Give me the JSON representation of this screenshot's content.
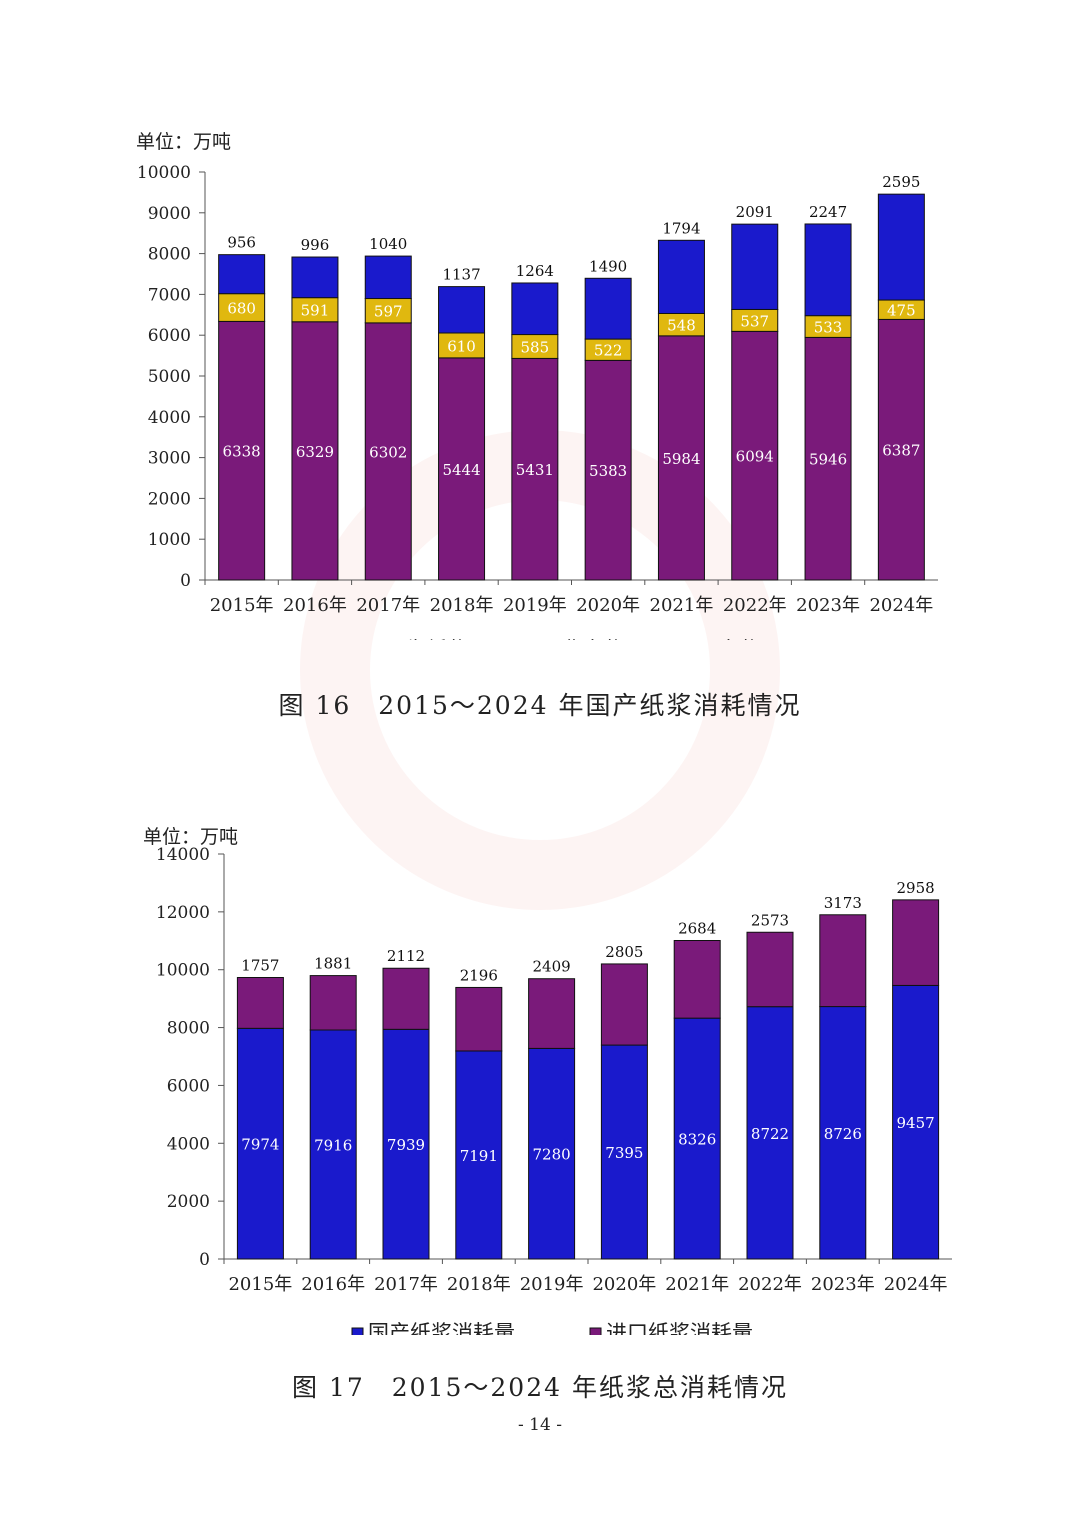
{
  "chart_data": [
    {
      "type": "bar",
      "stacked": true,
      "unit_label": "单位：万吨",
      "categories": [
        "2015年",
        "2016年",
        "2017年",
        "2018年",
        "2019年",
        "2020年",
        "2021年",
        "2022年",
        "2023年",
        "2024年"
      ],
      "series": [
        {
          "name": "再生纸浆",
          "color": "#7a1a7a",
          "values": [
            6338,
            6329,
            6302,
            5444,
            5431,
            5383,
            5984,
            6094,
            5946,
            6387
          ]
        },
        {
          "name": "非木浆",
          "color": "#e0b80f",
          "values": [
            680,
            591,
            597,
            610,
            585,
            522,
            548,
            537,
            533,
            475
          ]
        },
        {
          "name": "木浆",
          "color": "#1a1acc",
          "values": [
            956,
            996,
            1040,
            1137,
            1264,
            1490,
            1794,
            2091,
            2247,
            2595
          ]
        }
      ],
      "ylim": [
        0,
        10000
      ],
      "yticks": [
        0,
        1000,
        2000,
        3000,
        4000,
        5000,
        6000,
        7000,
        8000,
        9000,
        10000
      ],
      "caption": "图 16　2015～2024 年国产纸浆消耗情况",
      "legend_position": "bottom"
    },
    {
      "type": "bar",
      "stacked": true,
      "unit_label": "单位：万吨",
      "categories": [
        "2015年",
        "2016年",
        "2017年",
        "2018年",
        "2019年",
        "2020年",
        "2021年",
        "2022年",
        "2023年",
        "2024年"
      ],
      "series": [
        {
          "name": "国产纸浆消耗量",
          "color": "#1a1acc",
          "values": [
            7974,
            7916,
            7939,
            7191,
            7280,
            7395,
            8326,
            8722,
            8726,
            9457
          ]
        },
        {
          "name": "进口纸浆消耗量",
          "color": "#7a1a7a",
          "values": [
            1757,
            1881,
            2112,
            2196,
            2409,
            2805,
            2684,
            2573,
            3173,
            2958
          ]
        }
      ],
      "ylim": [
        0,
        14000
      ],
      "yticks": [
        0,
        2000,
        4000,
        6000,
        8000,
        10000,
        12000,
        14000
      ],
      "caption": "图 17　2015～2024 年纸浆总消耗情况",
      "legend_position": "bottom"
    }
  ],
  "page_number": "- 14 -"
}
